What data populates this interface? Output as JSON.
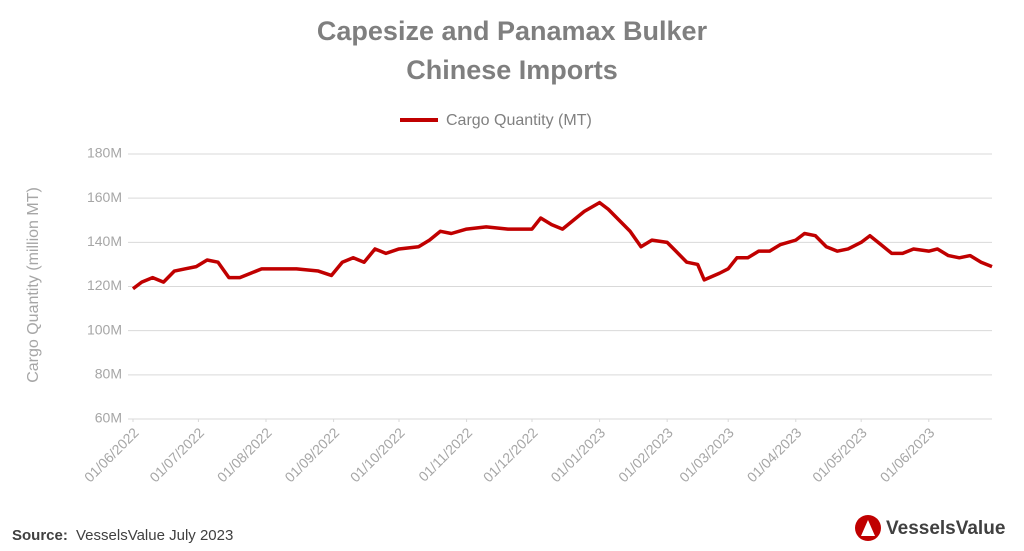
{
  "chart_data": {
    "type": "line",
    "title": [
      "Capesize and Panamax Bulker",
      "Chinese Imports"
    ],
    "y_label": "Cargo Quantity   (million MT)",
    "source_label": "Source:",
    "source": "VesselsValue July 2023",
    "brand": "VesselsValue",
    "x": [
      "01/06/2022",
      "05/06/2022",
      "10/06/2022",
      "15/06/2022",
      "20/06/2022",
      "25/06/2022",
      "30/06/2022",
      "05/07/2022",
      "10/07/2022",
      "15/07/2022",
      "20/07/2022",
      "25/07/2022",
      "30/07/2022",
      "05/08/2022",
      "15/08/2022",
      "25/08/2022",
      "31/08/2022",
      "05/09/2022",
      "10/09/2022",
      "15/09/2022",
      "20/09/2022",
      "25/09/2022",
      "01/10/2022",
      "10/10/2022",
      "15/10/2022",
      "20/10/2022",
      "25/10/2022",
      "01/11/2022",
      "10/11/2022",
      "20/11/2022",
      "01/12/2022",
      "05/12/2022",
      "10/12/2022",
      "15/12/2022",
      "20/12/2022",
      "25/12/2022",
      "01/01/2023",
      "05/01/2023",
      "10/01/2023",
      "15/01/2023",
      "20/01/2023",
      "25/01/2023",
      "01/02/2023",
      "05/02/2023",
      "10/02/2023",
      "15/02/2023",
      "18/02/2023",
      "25/02/2023",
      "01/03/2023",
      "05/03/2023",
      "10/03/2023",
      "15/03/2023",
      "20/03/2023",
      "25/03/2023",
      "01/04/2023",
      "05/04/2023",
      "10/04/2023",
      "15/04/2023",
      "20/04/2023",
      "25/04/2023",
      "01/05/2023",
      "05/05/2023",
      "10/05/2023",
      "15/05/2023",
      "20/05/2023",
      "25/05/2023",
      "01/06/2023",
      "05/06/2023",
      "10/06/2023",
      "15/06/2023",
      "20/06/2023",
      "25/06/2023",
      "30/06/2023"
    ],
    "series": [
      {
        "name": "Cargo Quantity (MT)",
        "color": "#c00000",
        "values": [
          119,
          122,
          124,
          122,
          127,
          128,
          129,
          132,
          131,
          124,
          124,
          126,
          128,
          128,
          128,
          127,
          125,
          131,
          133,
          131,
          137,
          135,
          137,
          138,
          141,
          145,
          144,
          146,
          147,
          146,
          146,
          151,
          148,
          146,
          150,
          154,
          158,
          155,
          150,
          145,
          138,
          141,
          140,
          136,
          131,
          130,
          123,
          126,
          128,
          133,
          133,
          136,
          136,
          139,
          141,
          144,
          143,
          138,
          136,
          137,
          140,
          143,
          139,
          135,
          135,
          137,
          136,
          137,
          134,
          133,
          134,
          131,
          129
        ]
      }
    ],
    "xlim": [
      "01/06/2022",
      "30/06/2023"
    ],
    "xticks": [
      "01/06/2022",
      "01/07/2022",
      "01/08/2022",
      "01/09/2022",
      "01/10/2022",
      "01/11/2022",
      "01/12/2022",
      "01/01/2023",
      "01/02/2023",
      "01/03/2023",
      "01/04/2023",
      "01/05/2023",
      "01/06/2023"
    ],
    "ylim": [
      60,
      180
    ],
    "yticks": [
      {
        "value": 60,
        "label": "60M"
      },
      {
        "value": 80,
        "label": "80M"
      },
      {
        "value": 100,
        "label": "100M"
      },
      {
        "value": 120,
        "label": "120M"
      },
      {
        "value": 140,
        "label": "140M"
      },
      {
        "value": 160,
        "label": "160M"
      },
      {
        "value": 180,
        "label": "180M"
      }
    ],
    "grid": true
  }
}
